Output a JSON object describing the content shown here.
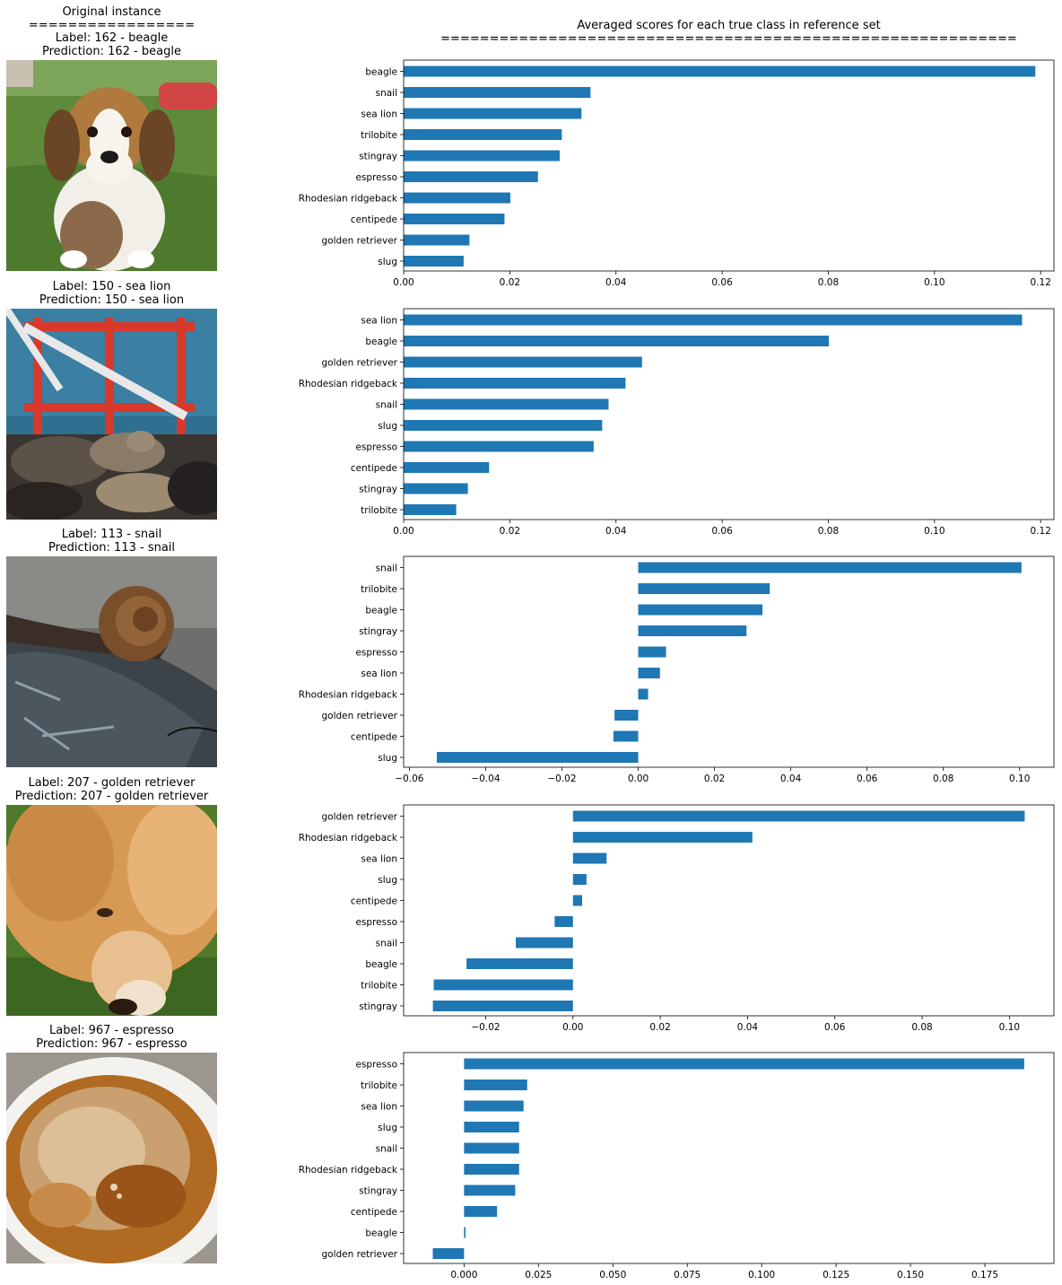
{
  "header": {
    "left_title": "Original instance",
    "left_rule": "=================",
    "right_title": "Averaged scores for each true class in reference set",
    "right_rule": "==========================================================="
  },
  "colors": {
    "bar": "#1f77b4"
  },
  "instances": [
    {
      "label_text": "Label: 162 - beagle",
      "prediction_text": "Prediction: 162 - beagle",
      "image": "beagle-puppy-photo"
    },
    {
      "label_text": "Label: 150 - sea lion",
      "prediction_text": "Prediction: 150 - sea lion",
      "image": "sea-lions-on-buoy-photo"
    },
    {
      "label_text": "Label: 113 - snail",
      "prediction_text": "Prediction: 113 - snail",
      "image": "snail-photo"
    },
    {
      "label_text": "Label: 207 - golden retriever",
      "prediction_text": "Prediction: 207 - golden retriever",
      "image": "golden-retriever-photo"
    },
    {
      "label_text": "Label: 967 - espresso",
      "prediction_text": "Prediction: 967 - espresso",
      "image": "espresso-cup-photo"
    }
  ],
  "chart_data": [
    {
      "type": "bar",
      "orientation": "horizontal",
      "categories": [
        "beagle",
        "snail",
        "sea lion",
        "trilobite",
        "stingray",
        "espresso",
        "Rhodesian ridgeback",
        "centipede",
        "golden retriever",
        "slug"
      ],
      "values": [
        0.119,
        0.0352,
        0.0335,
        0.0298,
        0.0294,
        0.0253,
        0.0201,
        0.019,
        0.0124,
        0.0113
      ],
      "xlim": [
        0,
        0.1225
      ],
      "xticks": [
        0.0,
        0.02,
        0.04,
        0.06,
        0.08,
        0.1,
        0.12
      ],
      "xtick_labels": [
        "0.00",
        "0.02",
        "0.04",
        "0.06",
        "0.08",
        "0.10",
        "0.12"
      ]
    },
    {
      "type": "bar",
      "orientation": "horizontal",
      "categories": [
        "sea lion",
        "beagle",
        "golden retriever",
        "Rhodesian ridgeback",
        "snail",
        "slug",
        "espresso",
        "centipede",
        "stingray",
        "trilobite"
      ],
      "values": [
        0.1165,
        0.0801,
        0.0449,
        0.0418,
        0.0386,
        0.0374,
        0.0358,
        0.0161,
        0.0121,
        0.0099
      ],
      "xlim": [
        0,
        0.1225
      ],
      "xticks": [
        0.0,
        0.02,
        0.04,
        0.06,
        0.08,
        0.1,
        0.12
      ],
      "xtick_labels": [
        "0.00",
        "0.02",
        "0.04",
        "0.06",
        "0.08",
        "0.10",
        "0.12"
      ]
    },
    {
      "type": "bar",
      "orientation": "horizontal",
      "categories": [
        "snail",
        "trilobite",
        "beagle",
        "stingray",
        "espresso",
        "sea lion",
        "Rhodesian ridgeback",
        "golden retriever",
        "centipede",
        "slug"
      ],
      "values": [
        0.1005,
        0.0345,
        0.0326,
        0.0284,
        0.0073,
        0.0057,
        0.0026,
        -0.0062,
        -0.0065,
        -0.0528
      ],
      "xlim": [
        -0.0615,
        0.109
      ],
      "xticks": [
        -0.06,
        -0.04,
        -0.02,
        0.0,
        0.02,
        0.04,
        0.06,
        0.08,
        0.1
      ],
      "xtick_labels": [
        "−0.06",
        "−0.04",
        "−0.02",
        "0.00",
        "0.02",
        "0.04",
        "0.06",
        "0.08",
        "0.10"
      ]
    },
    {
      "type": "bar",
      "orientation": "horizontal",
      "categories": [
        "golden retriever",
        "Rhodesian ridgeback",
        "sea lion",
        "slug",
        "centipede",
        "espresso",
        "snail",
        "beagle",
        "trilobite",
        "stingray"
      ],
      "values": [
        0.1035,
        0.0411,
        0.0077,
        0.0031,
        0.0021,
        -0.0042,
        -0.0131,
        -0.0244,
        -0.0319,
        -0.0321
      ],
      "xlim": [
        -0.0388,
        0.1102
      ],
      "xticks": [
        -0.02,
        0.0,
        0.02,
        0.04,
        0.06,
        0.08,
        0.1
      ],
      "xtick_labels": [
        "−0.02",
        "0.00",
        "0.02",
        "0.04",
        "0.06",
        "0.08",
        "0.10"
      ]
    },
    {
      "type": "bar",
      "orientation": "horizontal",
      "categories": [
        "espresso",
        "trilobite",
        "sea lion",
        "slug",
        "snail",
        "Rhodesian ridgeback",
        "stingray",
        "centipede",
        "beagle",
        "golden retriever"
      ],
      "values": [
        0.1882,
        0.0212,
        0.02,
        0.0185,
        0.0185,
        0.0185,
        0.0172,
        0.0111,
        0.0005,
        -0.0105
      ],
      "xlim": [
        -0.0203,
        0.1982
      ],
      "xticks": [
        0.0,
        0.025,
        0.05,
        0.075,
        0.1,
        0.125,
        0.15,
        0.175
      ],
      "xtick_labels": [
        "0.000",
        "0.025",
        "0.050",
        "0.075",
        "0.100",
        "0.125",
        "0.150",
        "0.175"
      ]
    }
  ]
}
